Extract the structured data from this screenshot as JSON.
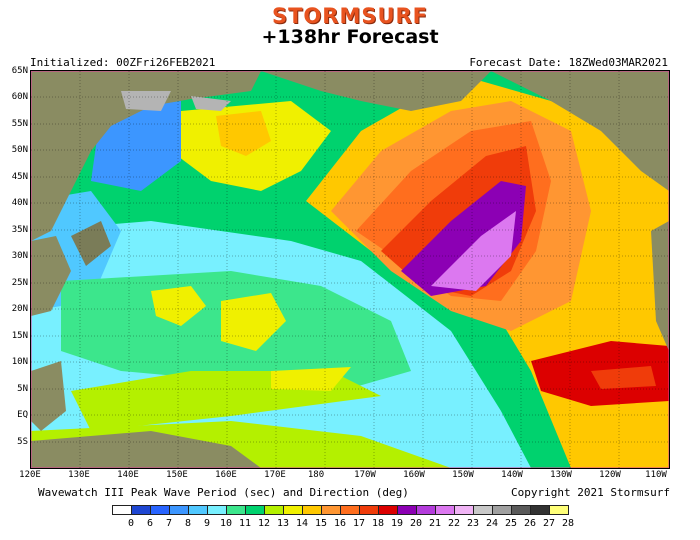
{
  "header": {
    "brand": "STORMSURF",
    "title": "+138hr Forecast",
    "initialized": "Initialized: 00ZFri26FEB2021",
    "forecast_date": "Forecast Date: 18ZWed03MAR2021"
  },
  "footer": {
    "caption": "Wavewatch III Peak Wave Period (sec) and Direction (deg)",
    "copyright": "Copyright 2021 Stormsurf"
  },
  "axes": {
    "lat_labels": [
      "65N",
      "60N",
      "55N",
      "50N",
      "45N",
      "40N",
      "35N",
      "30N",
      "25N",
      "20N",
      "15N",
      "10N",
      "5N",
      "EQ",
      "5S"
    ],
    "lon_labels": [
      "120E",
      "130E",
      "140E",
      "150E",
      "160E",
      "170E",
      "180",
      "170W",
      "160W",
      "150W",
      "140W",
      "130W",
      "120W",
      "110W"
    ]
  },
  "legend": {
    "labels": [
      "0",
      "6",
      "7",
      "8",
      "9",
      "10",
      "11",
      "12",
      "13",
      "14",
      "15",
      "16",
      "17",
      "18",
      "19",
      "20",
      "21",
      "22",
      "23",
      "24",
      "25",
      "26",
      "27",
      "28"
    ],
    "colors": [
      "#ffffff",
      "#1e46d2",
      "#2864ff",
      "#3c96ff",
      "#50c8ff",
      "#78f0ff",
      "#3ce68c",
      "#00d26e",
      "#b4f000",
      "#f0f000",
      "#ffc800",
      "#ff9632",
      "#ff6e1e",
      "#f03c0a",
      "#dc0000",
      "#8c00b4",
      "#b43cdc",
      "#dc78f0",
      "#f0b4f5",
      "#c8c8c8",
      "#a0a0a0",
      "#5a5a5a",
      "#323232",
      "#ffff78"
    ]
  },
  "map_colors": {
    "land": "#8a8c62",
    "ice": "#b4b4b4",
    "arrow": "#e03c9a"
  }
}
